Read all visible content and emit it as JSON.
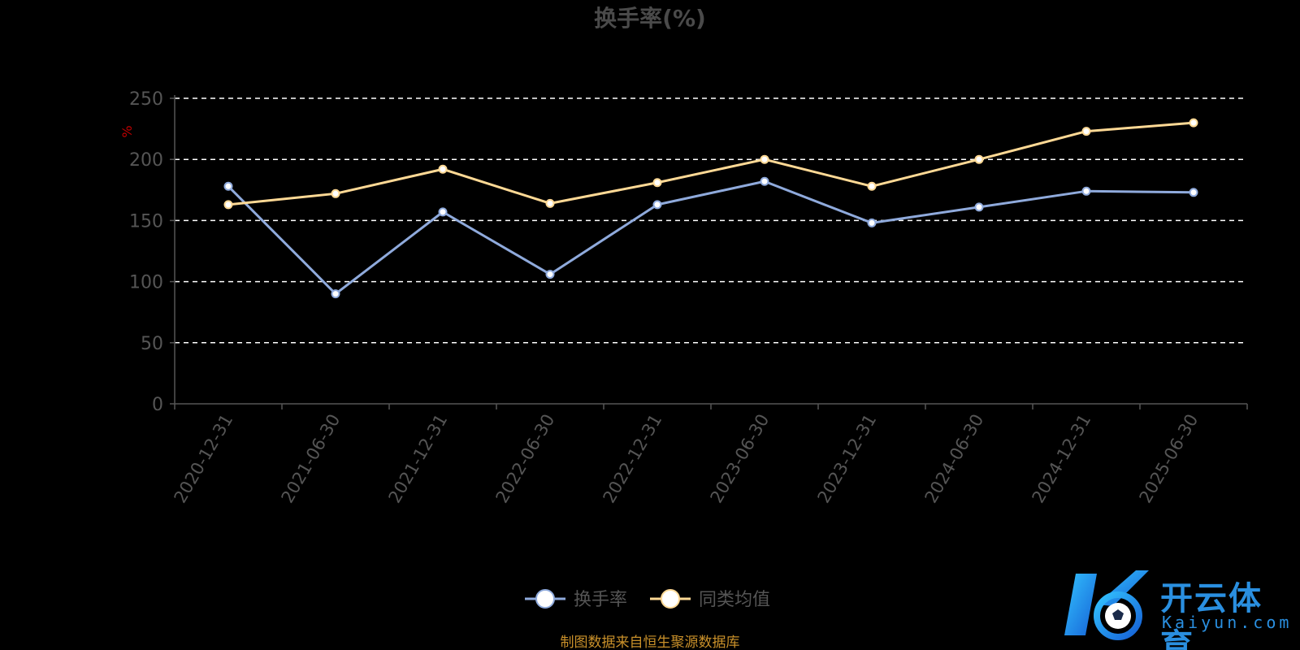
{
  "chart_data": {
    "type": "line",
    "title": "换手率(%)",
    "ylabel": "%",
    "ylim": [
      0,
      250
    ],
    "yticks": [
      "0",
      "50",
      "100",
      "150",
      "200",
      "250"
    ],
    "categories": [
      "2020-12-31",
      "2021-06-30",
      "2021-12-31",
      "2022-06-30",
      "2022-12-31",
      "2023-06-30",
      "2023-12-31",
      "2024-06-30",
      "2024-12-31",
      "2025-06-30"
    ],
    "series": [
      {
        "name": "换手率",
        "color": "#8faadc",
        "values": [
          178,
          90,
          157,
          106,
          163,
          182,
          148,
          161,
          174,
          173
        ]
      },
      {
        "name": "同类均值",
        "color": "#ffd995",
        "values": [
          163,
          172,
          192,
          164,
          181,
          200,
          178,
          200,
          223,
          230
        ]
      }
    ],
    "grid": true,
    "legend_position": "bottom"
  },
  "source_note": "制图数据来自恒生聚源数据库",
  "logo": {
    "cn": "开云体育",
    "en": "Kaiyun.com"
  }
}
